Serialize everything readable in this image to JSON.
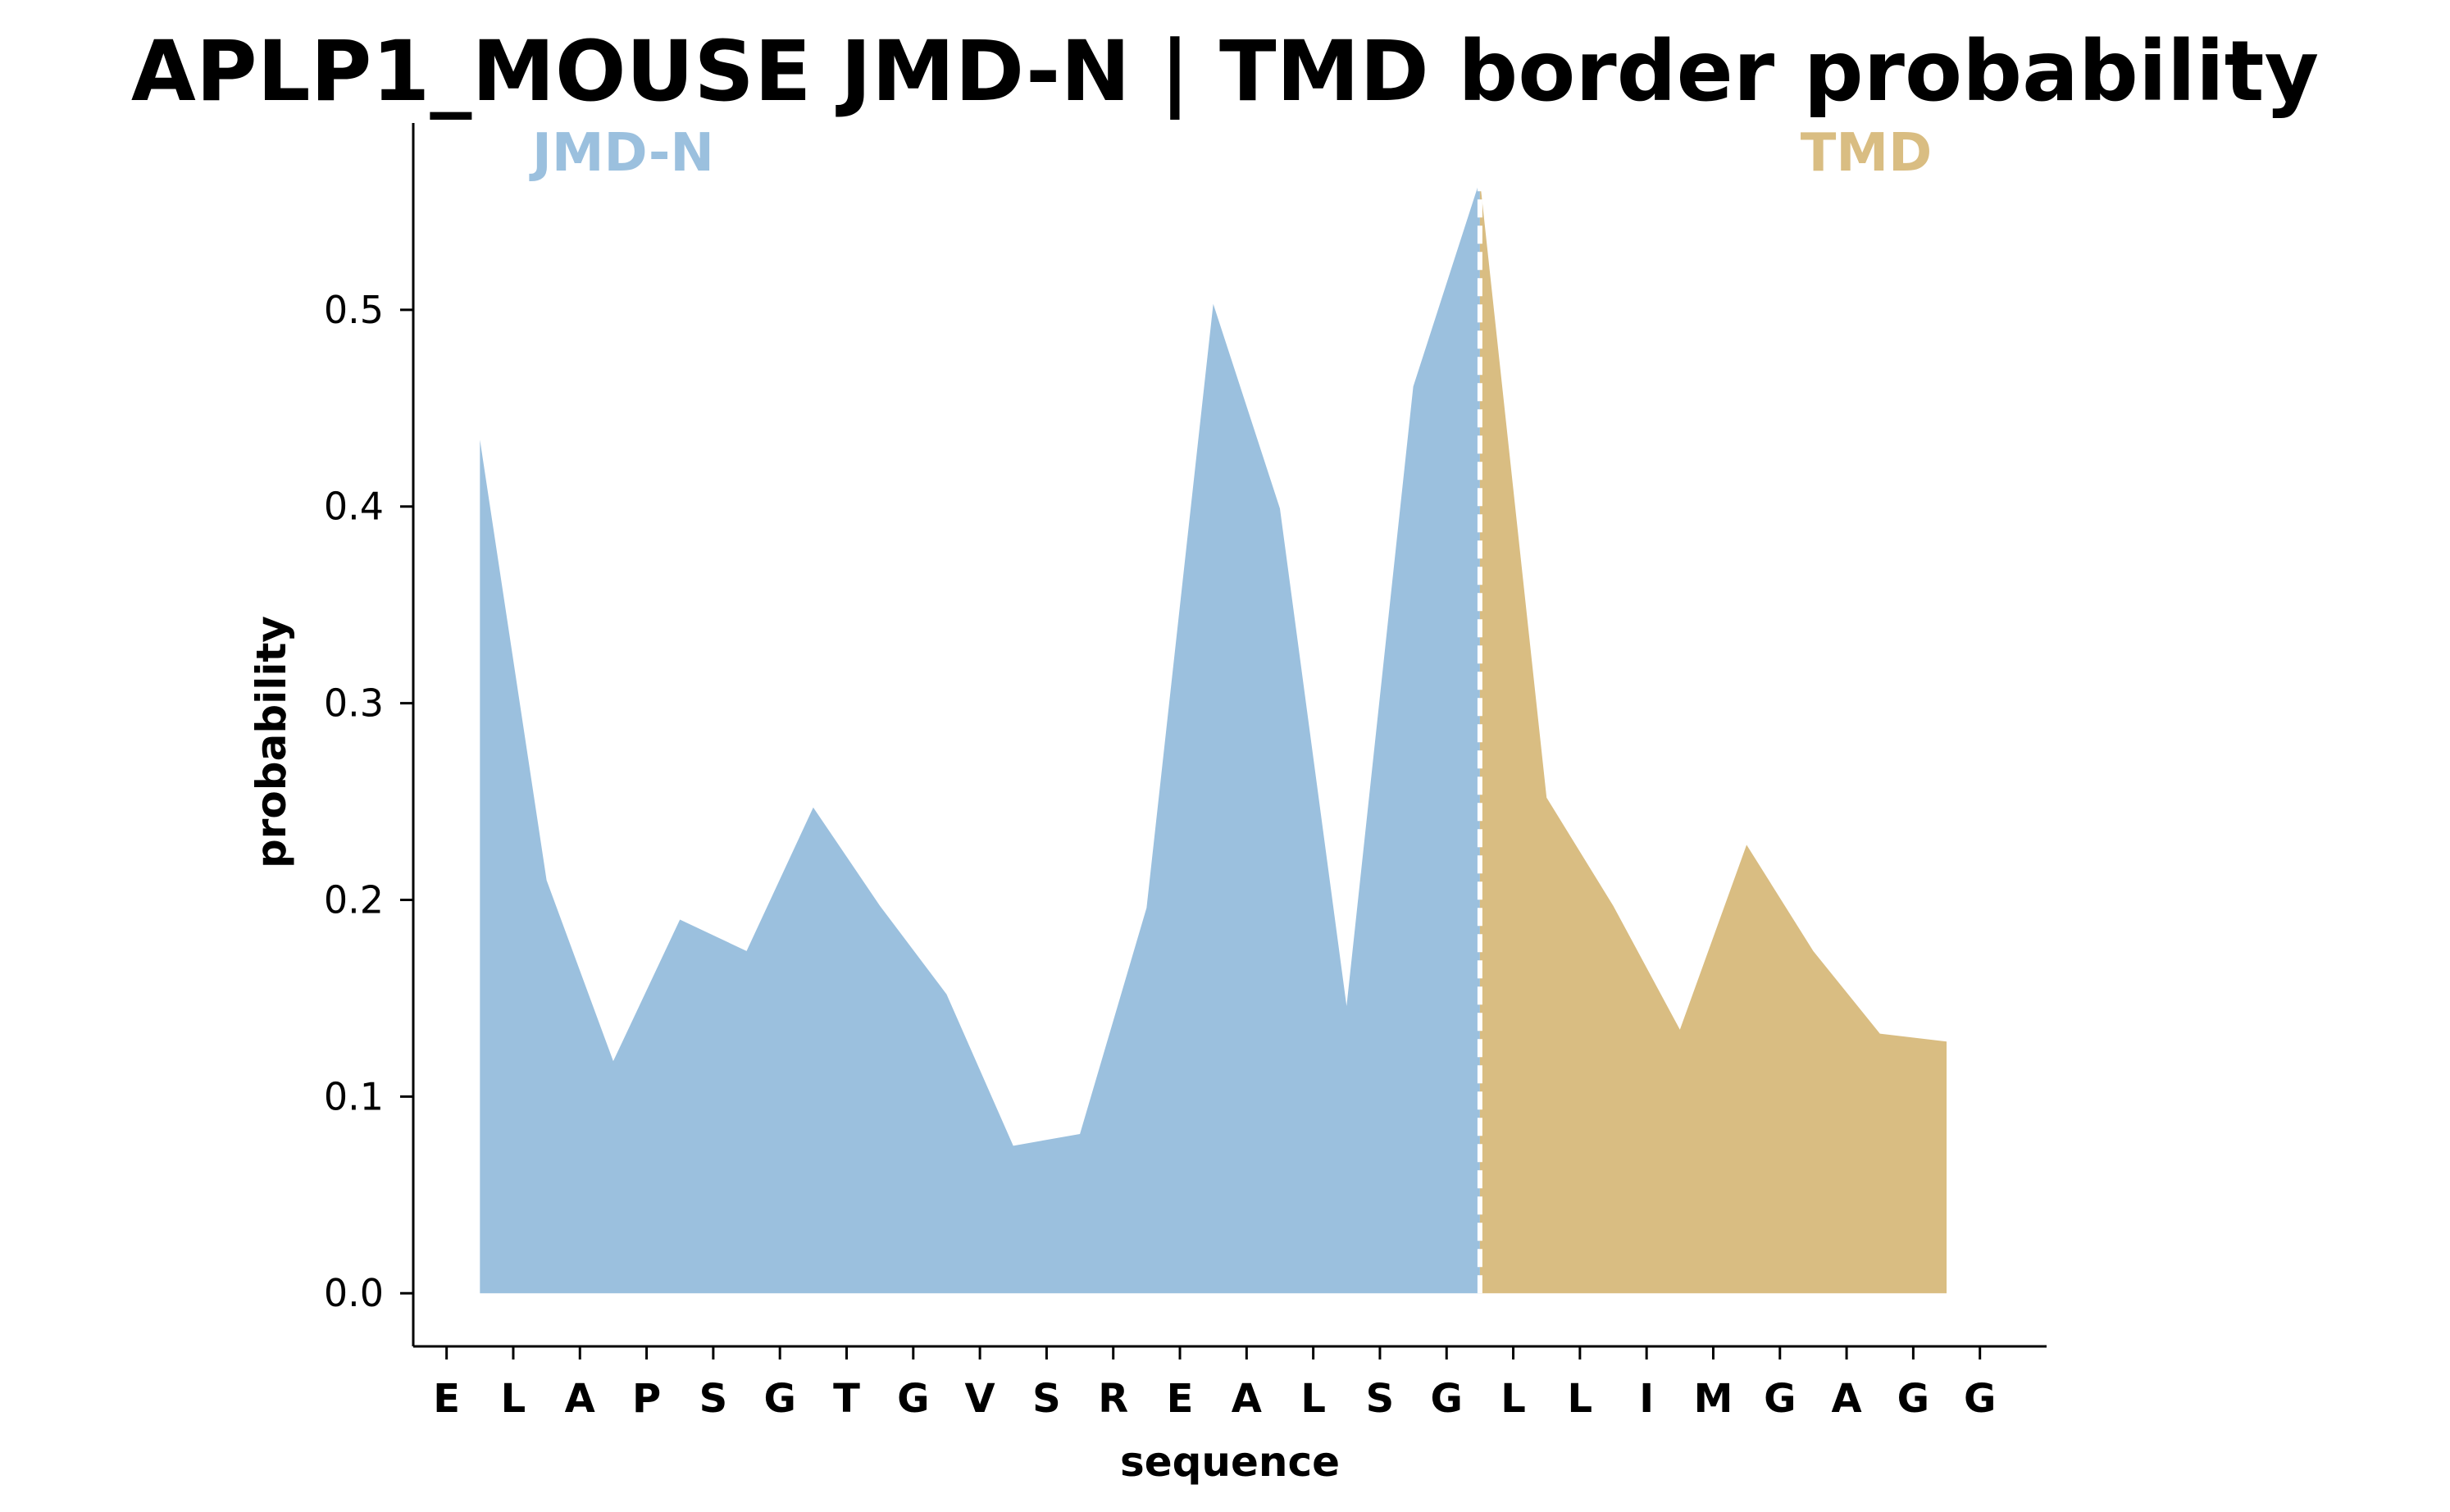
{
  "chart_data": {
    "type": "area",
    "title": "APLP1_MOUSE JMD-N | TMD border probability",
    "xlabel": "sequence",
    "ylabel": "probability",
    "yticks": [
      "0.0",
      "0.1",
      "0.2",
      "0.3",
      "0.4",
      "0.5"
    ],
    "ylim": [
      -0.027,
      0.595
    ],
    "categories": [
      "E",
      "L",
      "A",
      "P",
      "S",
      "G",
      "T",
      "G",
      "V",
      "S",
      "R",
      "E",
      "A",
      "L",
      "S",
      "G",
      "L",
      "L",
      "I",
      "M",
      "G",
      "A",
      "G",
      "G"
    ],
    "regions": [
      {
        "name": "JMD-N",
        "color": "#9bc0de"
      },
      {
        "name": "TMD",
        "color": "#d9bd82"
      }
    ],
    "border_x": 15.5,
    "series": [
      {
        "x": [
          0.5,
          1.5,
          2.5,
          3.5,
          4.5,
          5.5,
          6.5,
          7.5,
          8.5,
          9.5,
          10.5,
          11.5,
          12.5,
          13.5,
          14.5,
          15.5
        ],
        "values": [
          0.434,
          0.21,
          0.118,
          0.19,
          0.174,
          0.247,
          0.197,
          0.152,
          0.075,
          0.081,
          0.196,
          0.503,
          0.399,
          0.146,
          0.461,
          0.566
        ]
      },
      {
        "x": [
          15.5,
          16.5,
          17.5,
          18.5,
          19.5,
          20.5,
          21.5,
          22.5
        ],
        "values": [
          0.566,
          0.252,
          0.197,
          0.134,
          0.228,
          0.174,
          0.132,
          0.128
        ]
      }
    ],
    "grid": false,
    "legend": "none"
  }
}
